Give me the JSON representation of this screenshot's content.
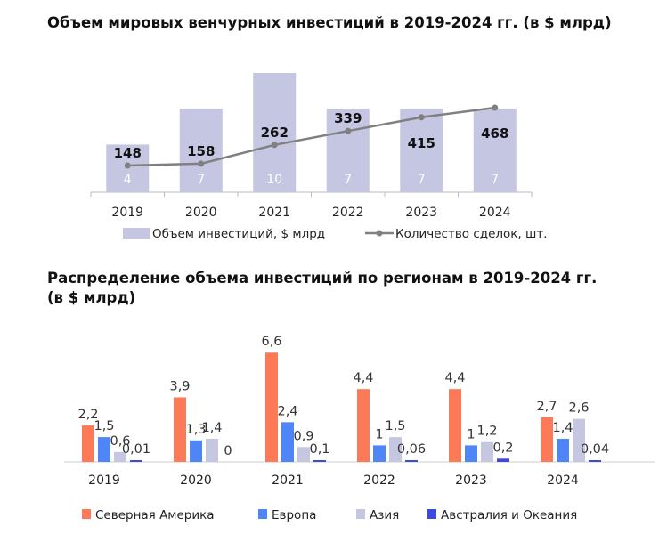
{
  "chart_data": [
    {
      "type": "bar+line",
      "title": "Объем мировых венчурных инвестиций в 2019-2024 гг. (в $ млрд)",
      "categories": [
        "2019",
        "2020",
        "2021",
        "2022",
        "2023",
        "2024"
      ],
      "series": [
        {
          "name": "Объем инвестиций, $ млрд",
          "type": "bar",
          "values": [
            4,
            7,
            10,
            7,
            7,
            7
          ],
          "color": "#c5c6e2"
        },
        {
          "name": "Количество сделок, шт.",
          "type": "line",
          "values": [
            148,
            158,
            262,
            339,
            415,
            468
          ],
          "color": "#808080"
        }
      ],
      "grid": false,
      "legend": "bottom"
    },
    {
      "type": "bar",
      "title": "Распределение объема инвестиций по регионам в 2019-2024 гг. (в $ млрд)",
      "title_lines": [
        "Распределение объема инвестиций по регионам в 2019-2024 гг.",
        "(в $ млрд)"
      ],
      "categories": [
        "2019",
        "2020",
        "2021",
        "2022",
        "2023",
        "2024"
      ],
      "series": [
        {
          "name": "Северная Америка",
          "values": [
            2.2,
            3.9,
            6.6,
            4.4,
            4.4,
            2.7
          ],
          "labels": [
            "2,2",
            "3,9",
            "6,6",
            "4,4",
            "4,4",
            "2,7"
          ],
          "color": "#fc7a57"
        },
        {
          "name": "Европа",
          "values": [
            1.5,
            1.3,
            2.4,
            1,
            1,
            1.4
          ],
          "labels": [
            "1,5",
            "1,3",
            "2,4",
            "1",
            "1",
            "1,4"
          ],
          "color": "#4f86f7"
        },
        {
          "name": "Азия",
          "values": [
            0.6,
            1.4,
            0.9,
            1.5,
            1.2,
            2.6
          ],
          "labels": [
            "0,6",
            "1,4",
            "0,9",
            "1,5",
            "1,2",
            "2,6"
          ],
          "color": "#c5c7e0"
        },
        {
          "name": "Австралия и Океания",
          "values": [
            0.01,
            0,
            0.1,
            0.06,
            0.2,
            0.04
          ],
          "labels": [
            "0,01",
            "0",
            "0,1",
            "0,06",
            "0,2",
            "0,04"
          ],
          "color": "#3d4ae0"
        }
      ],
      "grid": false,
      "legend": "bottom"
    }
  ]
}
